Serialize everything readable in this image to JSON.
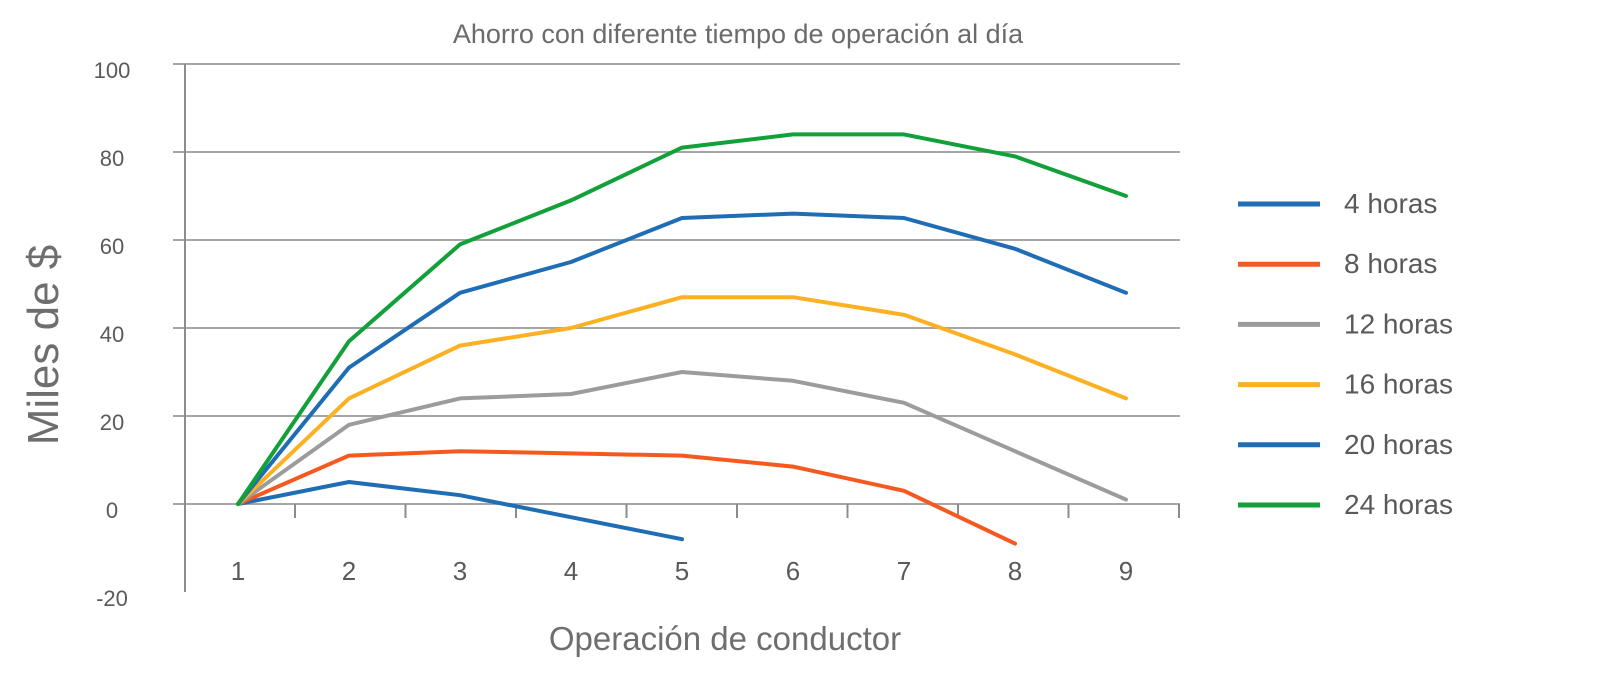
{
  "chart_data": {
    "type": "line",
    "title": "Ahorro con diferente tiempo de operación al día",
    "xlabel": "Operación de conductor",
    "ylabel": "Miles de $",
    "x": [
      1,
      2,
      3,
      4,
      5,
      6,
      7,
      8,
      9
    ],
    "x_tick_labels": [
      "1",
      "2",
      "3",
      "4",
      "5",
      "6",
      "7",
      "8",
      "9"
    ],
    "y_tick_labels": [
      "100",
      "80",
      "60",
      "40",
      "20",
      "0",
      "-20"
    ],
    "ylim": [
      -20,
      100
    ],
    "grid": true,
    "legend_position": "right",
    "series": [
      {
        "name": "4 horas",
        "color": "#1f6db5",
        "values": [
          0,
          5,
          2,
          -3,
          -8,
          null,
          null,
          null,
          null
        ]
      },
      {
        "name": "8 horas",
        "color": "#f5591f",
        "values": [
          0,
          11,
          12,
          11.5,
          11,
          8.5,
          3,
          -9,
          null
        ]
      },
      {
        "name": "12 horas",
        "color": "#9c9c9c",
        "values": [
          0,
          18,
          24,
          25,
          30,
          28,
          23,
          12,
          1
        ]
      },
      {
        "name": "16 horas",
        "color": "#fdb022",
        "values": [
          0,
          24,
          36,
          40,
          47,
          47,
          43,
          34,
          24
        ]
      },
      {
        "name": "20 horas",
        "color": "#1f6db5",
        "values": [
          0,
          31,
          48,
          55,
          65,
          66,
          65,
          58,
          48
        ]
      },
      {
        "name": "24 horas",
        "color": "#12a03a",
        "values": [
          0,
          37,
          59,
          69,
          81,
          84,
          84,
          79,
          70
        ]
      }
    ]
  }
}
